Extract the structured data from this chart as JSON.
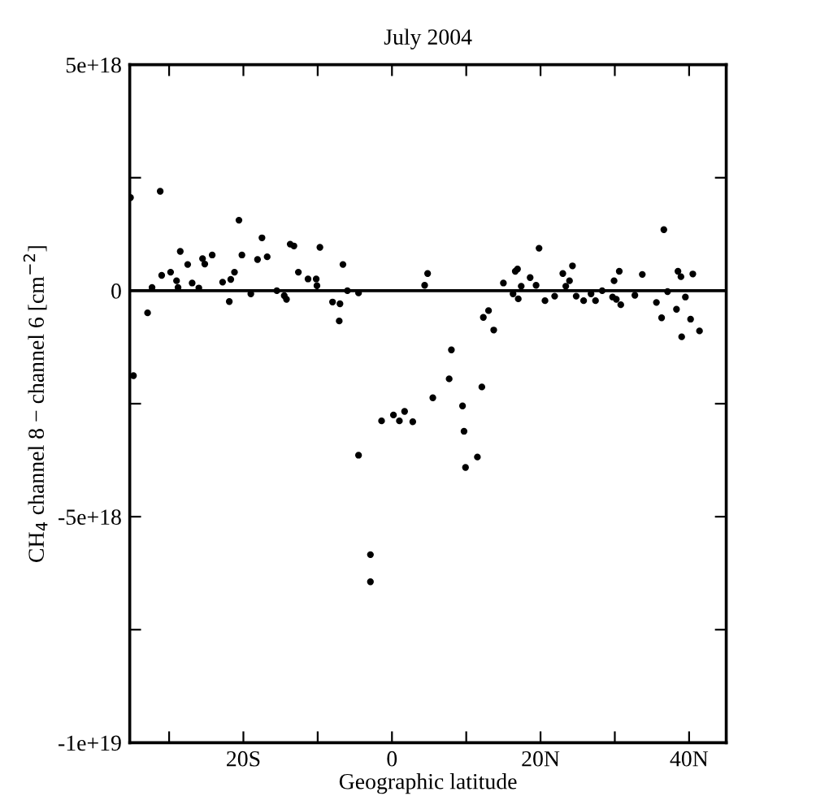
{
  "chart_data": {
    "type": "scatter",
    "title": "July 2004",
    "xlabel": "Geographic latitude",
    "ylabel": "CH$_{4}$ channel 8 − channel 6 [cm$^{−2}$]",
    "xlim": [
      -35.3,
      45
    ],
    "ylim": [
      -1e+19,
      5e+18
    ],
    "xticks": [
      {
        "value": -30,
        "label": null
      },
      {
        "value": -20,
        "label": "20S"
      },
      {
        "value": -10,
        "label": null
      },
      {
        "value": 0,
        "label": "0"
      },
      {
        "value": 10,
        "label": null
      },
      {
        "value": 20,
        "label": "20N"
      },
      {
        "value": 30,
        "label": null
      },
      {
        "value": 40,
        "label": "40N"
      }
    ],
    "yticks": [
      {
        "value": 5e+18,
        "label": "5e+18"
      },
      {
        "value": 2.5e+18,
        "label": null
      },
      {
        "value": 0,
        "label": "0"
      },
      {
        "value": -2.5e+18,
        "label": null
      },
      {
        "value": -5e+18,
        "label": "-5e+18"
      },
      {
        "value": -7.5e+18,
        "label": null
      },
      {
        "value": -1e+19,
        "label": "-1e+19"
      }
    ],
    "ref_lines": [
      {
        "axis": "y",
        "value": 0,
        "color": "#000000"
      }
    ],
    "marker": "circle",
    "grid": false,
    "legend": false,
    "series": [
      {
        "color": "#000000",
        "x": [
          -35.2,
          -34.8,
          -32.9,
          -32.3,
          -31.2,
          -31.0,
          -29.8,
          -29.0,
          -28.8,
          -28.5,
          -27.5,
          -26.9,
          -26.0,
          -25.5,
          -25.2,
          -24.2,
          -22.8,
          -21.9,
          -21.7,
          -21.2,
          -20.6,
          -20.2,
          -19.0,
          -18.1,
          -17.5,
          -16.8,
          -15.5,
          -14.5,
          -14.2,
          -13.7,
          -13.2,
          -12.6,
          -11.3,
          -10.2,
          -10.1,
          -9.7,
          -8.0,
          -7.0,
          -7.1,
          -6.6,
          -6.0,
          -4.5,
          -4.5,
          -2.9,
          -2.9,
          -1.4,
          0.2,
          1.0,
          1.7,
          2.8,
          4.4,
          4.8,
          5.5,
          7.7,
          8.0,
          9.5,
          9.7,
          9.9,
          11.5,
          12.1,
          12.3,
          13.0,
          13.7,
          15.0,
          16.3,
          16.6,
          16.9,
          17.0,
          17.4,
          18.6,
          19.4,
          19.8,
          20.6,
          21.9,
          23.0,
          23.4,
          23.9,
          24.3,
          24.8,
          25.8,
          26.8,
          27.4,
          28.3,
          29.7,
          29.9,
          30.2,
          30.6,
          30.8,
          32.7,
          33.7,
          35.6,
          36.3,
          36.6,
          37.1,
          38.3,
          38.5,
          38.9,
          39.0,
          39.5,
          40.2,
          40.5,
          41.4
        ],
        "values": [
          2.06e+18,
          -1.88e+18,
          -4.9e+17,
          7e+16,
          2.2e+18,
          3.4e+17,
          4.1e+17,
          2.2e+17,
          7e+16,
          8.7e+17,
          5.8e+17,
          1.7e+17,
          6e+16,
          7.1e+17,
          5.9e+17,
          7.9e+17,
          1.9e+17,
          -2.4e+17,
          2.5e+17,
          4.1e+17,
          1.56e+18,
          7.9e+17,
          -7e+16,
          6.9e+17,
          1.17e+18,
          7.5e+17,
          0.0,
          -1.1e+17,
          -1.9e+17,
          1.03e+18,
          9.9e+17,
          4.1e+17,
          2.6e+17,
          2.6e+17,
          1.1e+17,
          9.6e+17,
          -2.5e+17,
          -2.9e+17,
          -6.7e+17,
          5.8e+17,
          0.0,
          -5e+16,
          -3.64e+18,
          -5.84e+18,
          -6.44e+18,
          -2.88e+18,
          -2.75e+18,
          -2.88e+18,
          -2.67e+18,
          -2.9e+18,
          1.2e+17,
          3.8e+17,
          -2.37e+18,
          -1.95e+18,
          -1.31e+18,
          -2.55e+18,
          -3.11e+18,
          -3.91e+18,
          -3.68e+18,
          -2.13e+18,
          -5.9e+17,
          -4.4e+17,
          -8.7e+17,
          1.7e+17,
          -7e+16,
          4.3e+17,
          4.8e+17,
          -1.8e+17,
          1e+17,
          2.9e+17,
          1.2e+17,
          9.4e+17,
          -2.2e+17,
          -1.2e+17,
          3.8e+17,
          1e+17,
          2.2e+17,
          5.5e+17,
          -1.2e+17,
          -2.2e+17,
          -7e+16,
          -2.2e+17,
          0.0,
          -1.4e+17,
          2.2e+17,
          -1.9e+17,
          4.3e+17,
          -3.1e+17,
          -1e+17,
          3.6e+17,
          -2.6e+17,
          -6e+17,
          1.35e+18,
          -2e+16,
          -4.1e+17,
          4.3e+17,
          3.1e+17,
          -1.02e+18,
          -1.4e+17,
          -6.3e+17,
          3.7e+17,
          -8.9e+17
        ]
      }
    ]
  }
}
